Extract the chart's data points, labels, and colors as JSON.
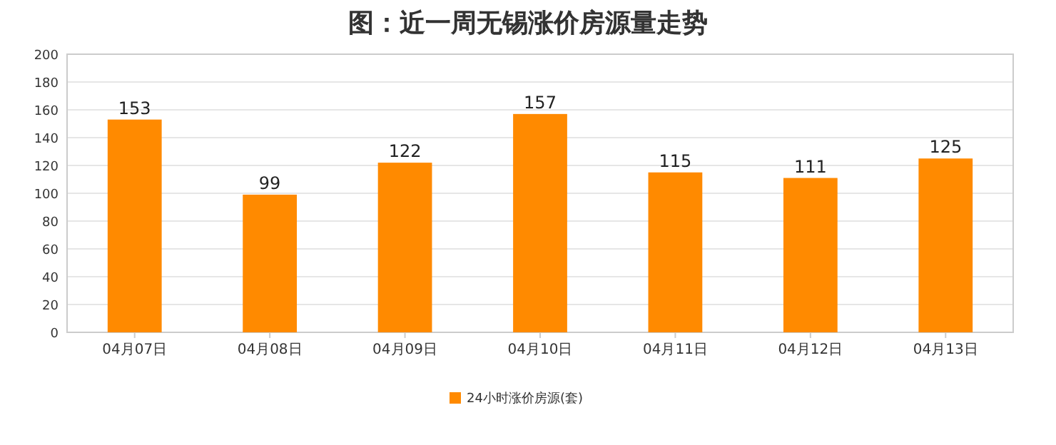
{
  "chart_data": {
    "type": "bar",
    "title": "图：近一周无锡涨价房源量走势",
    "categories": [
      "04月07日",
      "04月08日",
      "04月09日",
      "04月10日",
      "04月11日",
      "04月12日",
      "04月13日"
    ],
    "series": [
      {
        "name": "24小时涨价房源(套)",
        "color": "#ff8a00",
        "values": [
          153,
          99,
          122,
          157,
          115,
          111,
          125
        ]
      }
    ],
    "ylim": [
      0,
      200
    ],
    "yticks": [
      0,
      20,
      40,
      60,
      80,
      100,
      120,
      140,
      160,
      180,
      200
    ],
    "grid": "y",
    "legend": "bottom",
    "data_labels": true
  }
}
